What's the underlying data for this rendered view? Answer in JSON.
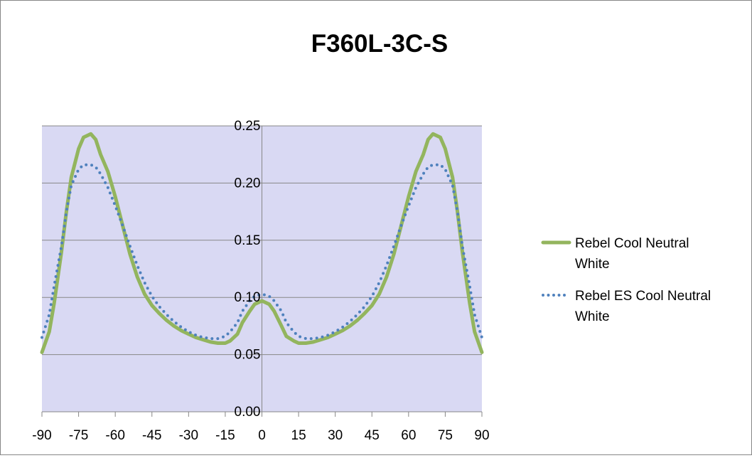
{
  "chart_data": {
    "type": "line",
    "title": "F360L-3C-S",
    "xlabel": "",
    "ylabel": "",
    "xlim": [
      -90,
      90
    ],
    "ylim": [
      0,
      0.25
    ],
    "x_ticks": [
      -90,
      -75,
      -60,
      -45,
      -30,
      -15,
      0,
      15,
      30,
      45,
      60,
      75,
      90
    ],
    "x_tick_labels": [
      "-90",
      "-75",
      "-60",
      "-45",
      "-30",
      "-15",
      "0",
      "15",
      "30",
      "45",
      "60",
      "75",
      "90"
    ],
    "y_ticks": [
      0,
      0.05,
      0.1,
      0.15,
      0.2,
      0.25
    ],
    "y_tick_labels": [
      "0.00",
      "0.05",
      "0.10",
      "0.15",
      "0.20",
      "0.25"
    ],
    "grid": true,
    "legend_position": "right",
    "plot_background": "#d9d9f3",
    "series": [
      {
        "name": "Rebel Cool Neutral White",
        "style": "solid",
        "color": "#93b55e",
        "x": [
          -90,
          -87,
          -85,
          -82,
          -80,
          -78,
          -75,
          -73,
          -70,
          -68,
          -66,
          -63,
          -60,
          -57,
          -54,
          -51,
          -48,
          -45,
          -42,
          -39,
          -36,
          -33,
          -30,
          -27,
          -24,
          -21,
          -18,
          -15,
          -13,
          -10,
          -8,
          -5,
          -3,
          0,
          3,
          5,
          8,
          10,
          13,
          15,
          18,
          21,
          24,
          27,
          30,
          33,
          36,
          39,
          42,
          45,
          48,
          51,
          54,
          57,
          60,
          63,
          66,
          68,
          70,
          73,
          75,
          78,
          80,
          82,
          85,
          87,
          90
        ],
        "values": [
          0.052,
          0.07,
          0.095,
          0.14,
          0.175,
          0.205,
          0.23,
          0.24,
          0.243,
          0.238,
          0.225,
          0.21,
          0.188,
          0.163,
          0.138,
          0.118,
          0.103,
          0.093,
          0.086,
          0.08,
          0.075,
          0.071,
          0.068,
          0.065,
          0.063,
          0.061,
          0.06,
          0.06,
          0.062,
          0.068,
          0.078,
          0.088,
          0.094,
          0.097,
          0.094,
          0.088,
          0.075,
          0.066,
          0.062,
          0.06,
          0.06,
          0.061,
          0.063,
          0.065,
          0.068,
          0.071,
          0.075,
          0.08,
          0.086,
          0.093,
          0.103,
          0.118,
          0.138,
          0.163,
          0.188,
          0.21,
          0.225,
          0.238,
          0.243,
          0.24,
          0.23,
          0.205,
          0.175,
          0.14,
          0.095,
          0.07,
          0.052
        ]
      },
      {
        "name": "Rebel ES Cool Neutral White",
        "style": "dotted",
        "color": "#4f81bd",
        "x": [
          -90,
          -87,
          -85,
          -82,
          -80,
          -78,
          -75,
          -73,
          -70,
          -68,
          -66,
          -63,
          -60,
          -57,
          -54,
          -51,
          -48,
          -45,
          -42,
          -39,
          -36,
          -33,
          -30,
          -27,
          -24,
          -21,
          -18,
          -15,
          -13,
          -10,
          -8,
          -5,
          -3,
          0,
          3,
          5,
          8,
          10,
          13,
          15,
          18,
          21,
          24,
          27,
          30,
          33,
          36,
          39,
          42,
          45,
          48,
          51,
          54,
          57,
          60,
          63,
          66,
          68,
          70,
          73,
          75,
          78,
          80,
          82,
          85,
          87,
          90
        ],
        "values": [
          0.065,
          0.085,
          0.11,
          0.145,
          0.175,
          0.198,
          0.212,
          0.216,
          0.216,
          0.214,
          0.208,
          0.196,
          0.18,
          0.163,
          0.145,
          0.128,
          0.113,
          0.101,
          0.092,
          0.085,
          0.079,
          0.074,
          0.07,
          0.067,
          0.065,
          0.064,
          0.064,
          0.066,
          0.07,
          0.078,
          0.088,
          0.097,
          0.101,
          0.103,
          0.101,
          0.097,
          0.088,
          0.078,
          0.07,
          0.066,
          0.064,
          0.064,
          0.065,
          0.067,
          0.07,
          0.074,
          0.079,
          0.085,
          0.092,
          0.101,
          0.113,
          0.128,
          0.145,
          0.163,
          0.18,
          0.196,
          0.208,
          0.214,
          0.216,
          0.216,
          0.212,
          0.198,
          0.175,
          0.145,
          0.11,
          0.085,
          0.065
        ]
      }
    ]
  }
}
